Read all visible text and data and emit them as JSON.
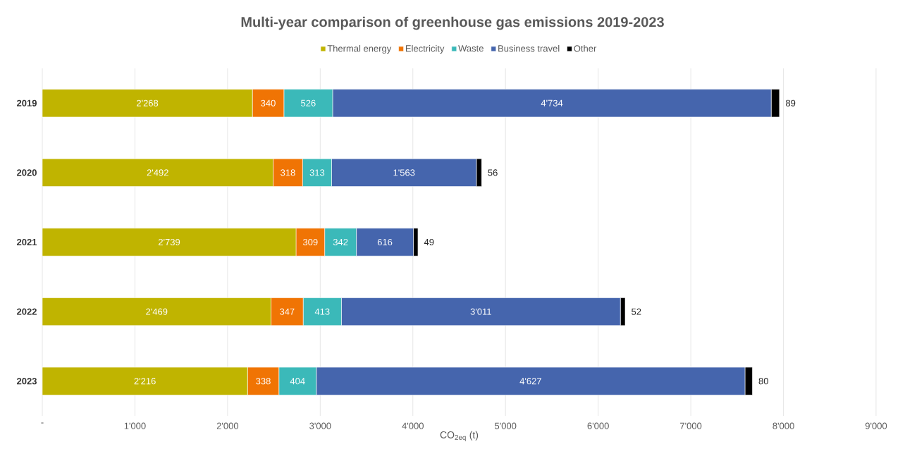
{
  "chart_data": {
    "type": "bar",
    "orientation": "horizontal",
    "stacked": true,
    "title": "Multi-year comparison of greenhouse gas emissions 2019-2023",
    "xlabel": "CO$_{2eq}$ (t)",
    "categories": [
      "2019",
      "2020",
      "2021",
      "2022",
      "2023"
    ],
    "series": [
      {
        "name": "Thermal energy",
        "color": "#c0b400",
        "values": [
          2268,
          2492,
          2739,
          2469,
          2216
        ],
        "value_labels": [
          "2'268",
          "2'492",
          "2'739",
          "2'469",
          "2'216"
        ]
      },
      {
        "name": "Electricity",
        "color": "#f07404",
        "values": [
          340,
          318,
          309,
          347,
          338
        ],
        "value_labels": [
          "340",
          "318",
          "309",
          "347",
          "338"
        ]
      },
      {
        "name": "Waste",
        "color": "#3bb9b9",
        "values": [
          526,
          313,
          342,
          413,
          404
        ],
        "value_labels": [
          "526",
          "313",
          "342",
          "413",
          "404"
        ]
      },
      {
        "name": "Business travel",
        "color": "#4565ad",
        "values": [
          4734,
          1563,
          616,
          3011,
          4627
        ],
        "value_labels": [
          "4'734",
          "1'563",
          "616",
          "3'011",
          "4'627"
        ]
      },
      {
        "name": "Other",
        "color": "#000000",
        "values": [
          89,
          56,
          49,
          52,
          80
        ],
        "value_labels": [
          "89",
          "56",
          "49",
          "52",
          "80"
        ]
      }
    ],
    "xlim": [
      0,
      9000
    ],
    "xticks": [
      {
        "value": 0,
        "label": "-"
      },
      {
        "value": 1000,
        "label": "1'000"
      },
      {
        "value": 2000,
        "label": "2'000"
      },
      {
        "value": 3000,
        "label": "3'000"
      },
      {
        "value": 4000,
        "label": "4'000"
      },
      {
        "value": 5000,
        "label": "5'000"
      },
      {
        "value": 6000,
        "label": "6'000"
      },
      {
        "value": 7000,
        "label": "7'000"
      },
      {
        "value": 8000,
        "label": "8'000"
      },
      {
        "value": 9000,
        "label": "9'000"
      }
    ],
    "grid": "x",
    "legend": "top"
  }
}
